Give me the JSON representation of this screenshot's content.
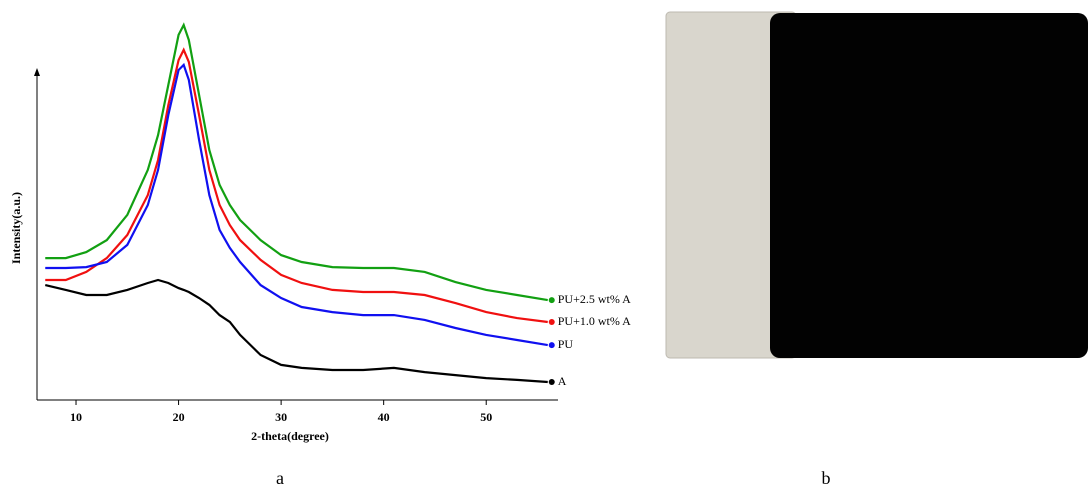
{
  "chart_data": {
    "type": "line",
    "xlabel": "2-theta(degree)",
    "ylabel": "Intensity(a.u.)",
    "x": [
      7,
      9,
      11,
      13,
      15,
      17,
      18,
      19,
      20,
      20.5,
      21,
      22,
      23,
      24,
      25,
      26,
      28,
      30,
      32,
      35,
      38,
      41,
      44,
      47,
      50,
      53,
      56
    ],
    "xlim": [
      6,
      57
    ],
    "xticks": [
      10,
      20,
      30,
      40,
      50
    ],
    "ylim": [
      0,
      130
    ],
    "series": [
      {
        "name": "PU+2.5 wt% A",
        "color": "#12a012",
        "values": [
          47.3,
          47.3,
          49.3,
          53.3,
          61.7,
          76.7,
          88.3,
          105,
          121.7,
          125,
          120,
          101.7,
          83.3,
          71.7,
          65,
          60,
          53.3,
          48.3,
          46,
          44.3,
          44,
          44,
          42.7,
          39.3,
          36.7,
          35,
          33.3
        ]
      },
      {
        "name": "PU+1.0 wt% A",
        "color": "#f01010",
        "values": [
          40,
          40,
          42.7,
          47.3,
          55,
          68.3,
          80,
          98.3,
          113.3,
          116.7,
          112.7,
          95,
          76.7,
          65,
          58.3,
          53.3,
          46.7,
          41.7,
          39,
          36.7,
          36,
          36,
          35,
          32.3,
          29.3,
          27.3,
          26
        ]
      },
      {
        "name": "PU",
        "color": "#1010f0",
        "values": [
          44,
          44,
          44.3,
          46,
          51.7,
          65,
          76.7,
          95,
          110,
          111.7,
          106.7,
          86.7,
          68.3,
          56.7,
          50.7,
          46,
          38.3,
          34,
          31,
          29.3,
          28.3,
          28.3,
          26.7,
          24,
          21.7,
          20,
          18.3
        ]
      },
      {
        "name": "A",
        "color": "#000000",
        "values": [
          38.3,
          36.7,
          35,
          35,
          36.7,
          39,
          40,
          39,
          37.3,
          36.7,
          36,
          34,
          31.7,
          28.3,
          26,
          21.7,
          15,
          11.7,
          10.7,
          10,
          10,
          10.7,
          9.3,
          8.3,
          7.3,
          6.7,
          6
        ]
      }
    ]
  },
  "captions": [
    "a",
    "b"
  ]
}
